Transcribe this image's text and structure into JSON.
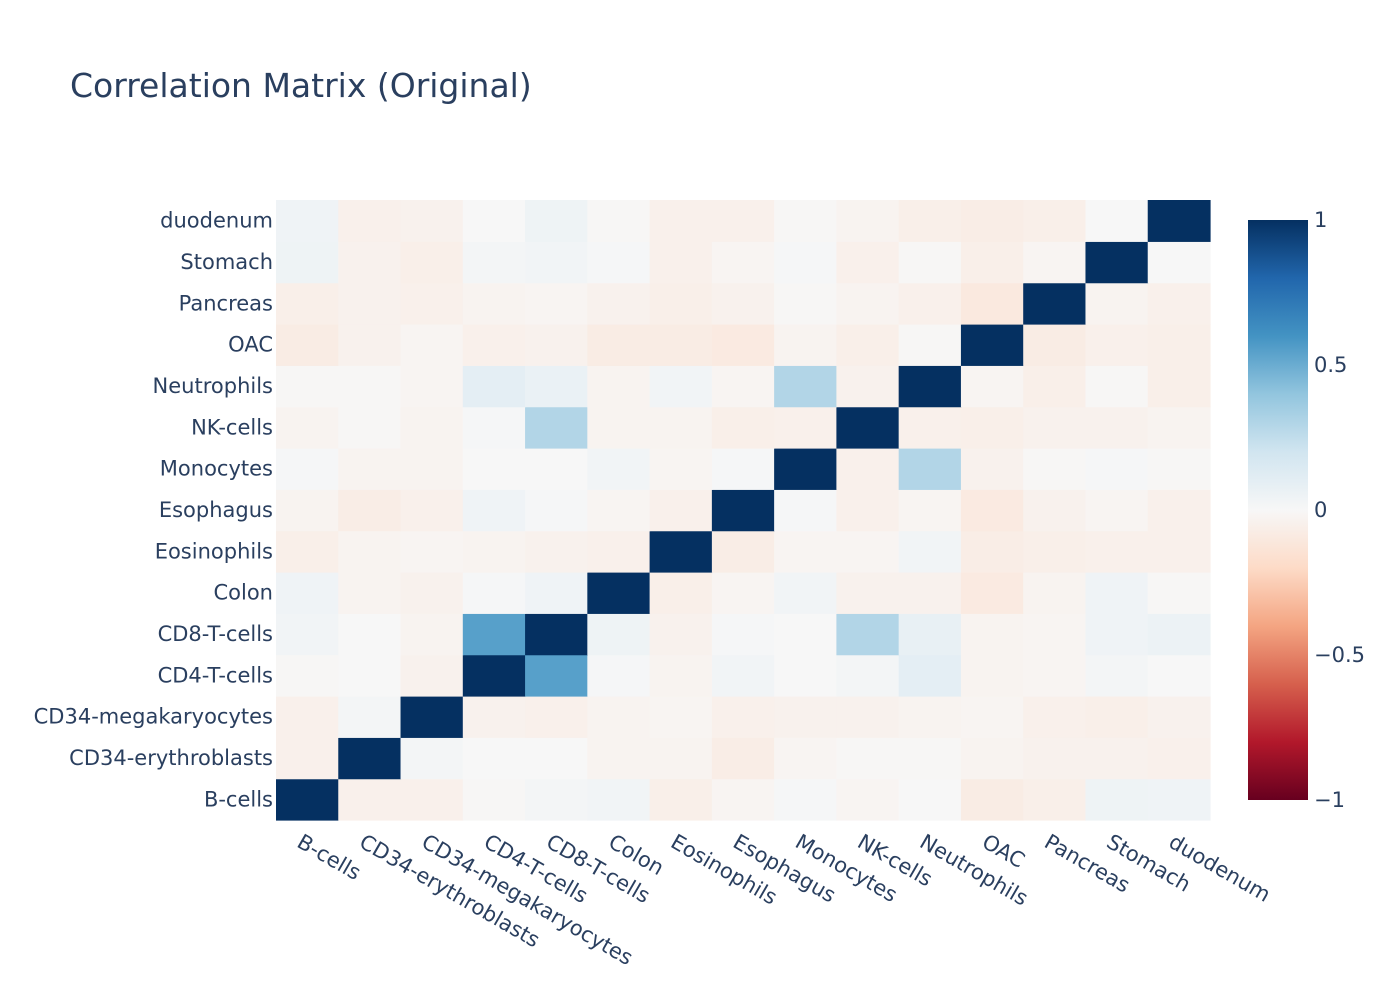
{
  "chart_data": {
    "type": "heatmap",
    "title": "Correlation Matrix (Original)",
    "x": [
      "B-cells",
      "CD34-erythroblasts",
      "CD34-megakaryocytes",
      "CD4-T-cells",
      "CD8-T-cells",
      "Colon",
      "Eosinophils",
      "Esophagus",
      "Monocytes",
      "NK-cells",
      "Neutrophils",
      "OAC",
      "Pancreas",
      "Stomach",
      "duodenum"
    ],
    "y": [
      "B-cells",
      "CD34-erythroblasts",
      "CD34-megakaryocytes",
      "CD4-T-cells",
      "CD8-T-cells",
      "Colon",
      "Eosinophils",
      "Esophagus",
      "Monocytes",
      "NK-cells",
      "Neutrophils",
      "OAC",
      "Pancreas",
      "Stomach",
      "duodenum"
    ],
    "z": [
      [
        1,
        -0.05,
        -0.05,
        -0.01,
        0.02,
        0.03,
        -0.06,
        -0.02,
        0.01,
        -0.02,
        0.0,
        -0.08,
        -0.06,
        0.05,
        0.04
      ],
      [
        -0.05,
        1,
        0.02,
        0.0,
        0.0,
        -0.03,
        -0.03,
        -0.07,
        -0.02,
        -0.01,
        -0.01,
        -0.03,
        -0.04,
        -0.04,
        -0.05
      ],
      [
        -0.05,
        0.02,
        1,
        -0.04,
        -0.05,
        -0.03,
        -0.02,
        -0.05,
        -0.04,
        -0.04,
        -0.03,
        -0.02,
        -0.05,
        -0.06,
        -0.04
      ],
      [
        -0.01,
        0.0,
        -0.04,
        1,
        0.55,
        0.01,
        -0.03,
        0.03,
        0.0,
        0.02,
        0.1,
        -0.03,
        -0.02,
        0.02,
        0.0
      ],
      [
        0.03,
        0.0,
        -0.03,
        0.55,
        1,
        0.05,
        -0.04,
        0.01,
        0.0,
        0.3,
        0.08,
        -0.03,
        -0.02,
        0.04,
        0.06
      ],
      [
        0.04,
        -0.03,
        -0.04,
        0.01,
        0.04,
        1,
        -0.06,
        -0.02,
        0.03,
        -0.04,
        -0.04,
        -0.09,
        -0.03,
        0.04,
        -0.01
      ],
      [
        -0.06,
        -0.03,
        -0.02,
        -0.03,
        -0.04,
        -0.05,
        1,
        -0.07,
        -0.02,
        -0.02,
        0.03,
        -0.07,
        -0.06,
        -0.05,
        -0.05
      ],
      [
        -0.03,
        -0.07,
        -0.05,
        0.04,
        0.01,
        -0.02,
        -0.05,
        1,
        0.01,
        -0.05,
        -0.02,
        -0.09,
        -0.04,
        -0.02,
        -0.05
      ],
      [
        0.01,
        -0.03,
        -0.03,
        0.0,
        0.0,
        0.03,
        -0.02,
        0.01,
        1,
        -0.05,
        0.3,
        -0.04,
        -0.01,
        0.01,
        -0.01
      ],
      [
        -0.03,
        -0.01,
        -0.03,
        0.01,
        0.3,
        -0.03,
        -0.03,
        -0.06,
        -0.05,
        1,
        -0.05,
        -0.06,
        -0.04,
        -0.04,
        -0.03
      ],
      [
        -0.01,
        -0.01,
        -0.02,
        0.1,
        0.07,
        -0.03,
        0.03,
        -0.02,
        0.3,
        -0.04,
        1,
        -0.02,
        -0.06,
        -0.01,
        -0.06
      ],
      [
        -0.08,
        -0.04,
        -0.02,
        -0.05,
        -0.04,
        -0.08,
        -0.08,
        -0.09,
        -0.03,
        -0.06,
        -0.01,
        1,
        -0.08,
        -0.05,
        -0.06
      ],
      [
        -0.06,
        -0.04,
        -0.05,
        -0.03,
        -0.02,
        -0.04,
        -0.06,
        -0.04,
        -0.01,
        -0.03,
        -0.05,
        -0.1,
        1,
        -0.03,
        -0.05
      ],
      [
        0.05,
        -0.04,
        -0.06,
        0.02,
        0.03,
        0.01,
        -0.05,
        -0.02,
        0.01,
        -0.05,
        -0.01,
        -0.06,
        -0.02,
        1,
        0.0
      ],
      [
        0.04,
        -0.05,
        -0.04,
        0.0,
        0.05,
        -0.01,
        -0.05,
        -0.05,
        -0.01,
        -0.03,
        -0.06,
        -0.07,
        -0.06,
        0.0,
        1
      ]
    ],
    "zmin": -1,
    "zmax": 1,
    "colorscale": [
      "#67001f",
      "#b2182b",
      "#d6604d",
      "#f4a582",
      "#fddbc7",
      "#f7f7f7",
      "#d1e5f0",
      "#92c5de",
      "#4393c3",
      "#2166ac",
      "#053061"
    ],
    "colorbar_ticks": [
      1,
      0.5,
      0,
      -0.5,
      -1
    ],
    "colorbar_tick_labels": [
      "1",
      "0.5",
      "0",
      "−0.5",
      "−1"
    ]
  }
}
